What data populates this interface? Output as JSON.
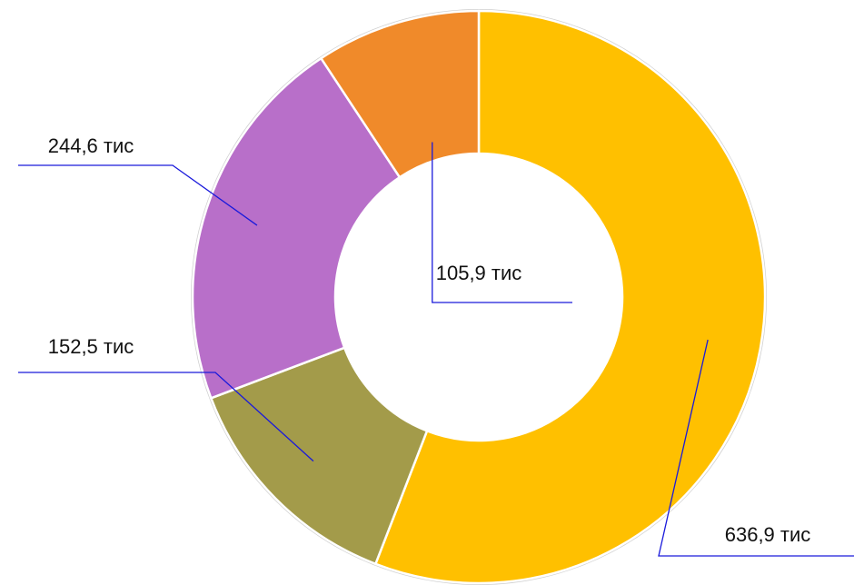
{
  "chart_data": {
    "type": "donut",
    "categories": [
      null,
      null,
      null,
      null
    ],
    "values": [
      636.9,
      152.5,
      244.6,
      105.9
    ],
    "value_labels": [
      "636,9 тис",
      "152,5 тис",
      "244,6 тис",
      "105,9 тис"
    ],
    "colors": [
      "#FFC000",
      "#A39B4A",
      "#B86FC9",
      "#F08A2A"
    ]
  }
}
